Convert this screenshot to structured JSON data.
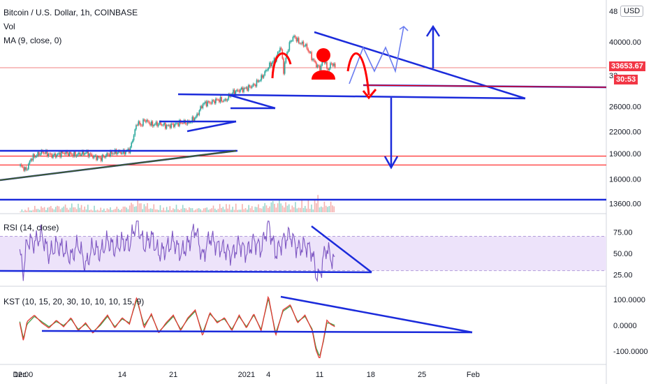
{
  "header": {
    "symbol_title": "Bitcoin / U.S. Dollar, 1h, COINBASE",
    "indicator_vol": "Vol",
    "indicator_ma": "MA (9, close, 0)",
    "currency_button": "USD",
    "currency_options_icon": "chevron-down-icon"
  },
  "price_tags": {
    "last_price": "33653.67",
    "countdown": "30:53",
    "color": "#f23645"
  },
  "colors": {
    "up": "#26a69a",
    "down": "#ef5350",
    "drawing_blue": "#1b2bdb",
    "drawing_red": "#ff0000",
    "rsi": "#7e57c2",
    "rsi_band": "#ede3fa",
    "kst": "#e53935",
    "kst_signal": "#43a047",
    "hline": "#f08080"
  },
  "chart_data": [
    {
      "type": "line",
      "name": "main-price",
      "title": "Bitcoin / U.S. Dollar, 1h, COINBASE",
      "y_scale": "log",
      "y_ticks": [
        "48000.00",
        "40000.00",
        "32000.00",
        "26000.00",
        "22000.00",
        "19000.00",
        "16000.00",
        "13600.00"
      ],
      "y_axis_top_partial": "48",
      "x_ticks": [
        "Dec",
        "12:00",
        "14",
        "21",
        "2021",
        "4",
        "11",
        "18",
        "25",
        "Feb"
      ],
      "x_tick_days": [
        0,
        0.5,
        14,
        21,
        31,
        34,
        41,
        48,
        55,
        62
      ],
      "x_start": "2020-11-26",
      "x_end": "2021-02-05",
      "ylim": [
        13200,
        50000
      ],
      "series": [
        {
          "x": [
            0,
            0.8,
            1.5,
            3,
            4.5,
            6,
            7.5,
            9,
            10,
            11,
            12,
            13.2,
            14,
            15,
            16,
            16.5,
            17,
            18,
            19,
            20,
            21,
            22,
            23,
            24,
            25,
            26,
            27,
            28,
            29,
            30,
            31,
            32,
            33,
            34,
            35,
            35.6,
            36,
            36.5,
            37,
            37.5,
            38,
            39,
            39.6,
            40,
            40.6,
            41,
            41.5,
            42,
            42.6,
            43.1
          ],
          "y": [
            17500,
            17000,
            18400,
            19200,
            18700,
            19100,
            18800,
            19100,
            18600,
            18400,
            18900,
            19200,
            19100,
            19500,
            23400,
            22900,
            23800,
            23000,
            23200,
            22800,
            23000,
            23400,
            23300,
            24200,
            26500,
            26700,
            27200,
            27000,
            28500,
            29000,
            29400,
            30000,
            31500,
            34000,
            36000,
            39000,
            33000,
            37500,
            40500,
            41500,
            40000,
            39000,
            37000,
            35500,
            34000,
            33500,
            36000,
            33000,
            34800,
            33653
          ]
        }
      ],
      "volume_peaks_x": [
        0.2,
        2,
        5,
        8,
        11,
        14,
        16,
        18,
        20,
        22,
        24,
        26,
        28,
        30,
        32,
        34,
        35,
        36,
        37,
        38,
        39,
        40,
        40.5,
        41,
        41.5,
        42,
        42.5,
        43
      ],
      "volume_peaks": [
        0.2,
        0.4,
        0.5,
        0.6,
        0.3,
        0.4,
        0.9,
        0.5,
        0.4,
        0.5,
        0.3,
        0.4,
        0.6,
        0.5,
        0.5,
        0.7,
        1.0,
        0.8,
        0.6,
        0.7,
        0.9,
        0.6,
        1.4,
        0.8,
        0.6,
        1.0,
        0.7,
        0.6
      ],
      "horizontal_levels": [
        33653.67,
        18400,
        17600,
        14100
      ]
    },
    {
      "type": "line",
      "name": "rsi",
      "title": "RSI (14, close)",
      "y_ticks": [
        "75.00",
        "50.00",
        "25.00"
      ],
      "ylim": [
        15,
        90
      ],
      "band": [
        30,
        70
      ],
      "series": [
        {
          "x": [
            0,
            0.5,
            1,
            2,
            3,
            4,
            5,
            6,
            7,
            8,
            9,
            10,
            11,
            12,
            13,
            14,
            15,
            16,
            17,
            18,
            19,
            20,
            21,
            22,
            23,
            24,
            25,
            26,
            27,
            28,
            29,
            30,
            31,
            32,
            33,
            34,
            35,
            36,
            37,
            38,
            39,
            40,
            40.5,
            41,
            41.5,
            42,
            42.5,
            43.1
          ],
          "y": [
            50,
            28,
            65,
            62,
            72,
            48,
            60,
            55,
            45,
            62,
            35,
            58,
            50,
            65,
            55,
            64,
            60,
            88,
            58,
            70,
            50,
            55,
            65,
            50,
            60,
            80,
            45,
            70,
            58,
            55,
            48,
            62,
            50,
            65,
            55,
            85,
            50,
            65,
            72,
            55,
            60,
            52,
            25,
            22,
            45,
            57,
            45,
            40
          ]
        }
      ]
    },
    {
      "type": "line",
      "name": "kst",
      "title": "KST (10, 15, 20, 30, 10, 10, 10, 15, 9)",
      "y_ticks": [
        "100.0000",
        "0.0000",
        "-100.0000"
      ],
      "ylim": [
        -140,
        130
      ],
      "series": [
        {
          "x": [
            0,
            0.5,
            1,
            2,
            3,
            4,
            5,
            6,
            7,
            8,
            9,
            10,
            11,
            12,
            13,
            14,
            15,
            16,
            17,
            18,
            19,
            20,
            21,
            22,
            23,
            24,
            25,
            26,
            27,
            28,
            29,
            30,
            31,
            32,
            33,
            34,
            35,
            36,
            37,
            38,
            39,
            40,
            40.5,
            41,
            41.5,
            42,
            42.5,
            43.1
          ],
          "y": [
            10,
            -60,
            15,
            40,
            10,
            -10,
            20,
            -5,
            30,
            -20,
            10,
            -30,
            5,
            40,
            -10,
            30,
            5,
            110,
            -10,
            45,
            -30,
            10,
            40,
            -20,
            30,
            60,
            -40,
            50,
            10,
            30,
            -20,
            40,
            -10,
            45,
            -20,
            115,
            -40,
            60,
            80,
            10,
            40,
            -20,
            -95,
            -130,
            -60,
            20,
            5,
            -5
          ]
        },
        {
          "x": [
            0,
            0.5,
            1,
            2,
            3,
            4,
            5,
            6,
            7,
            8,
            9,
            10,
            11,
            12,
            13,
            14,
            15,
            16,
            17,
            18,
            19,
            20,
            21,
            22,
            23,
            24,
            25,
            26,
            27,
            28,
            29,
            30,
            31,
            32,
            33,
            34,
            35,
            36,
            37,
            38,
            39,
            40,
            40.5,
            41,
            41.5,
            42,
            42.5,
            43.1
          ],
          "y": [
            15,
            -50,
            5,
            35,
            15,
            -5,
            15,
            0,
            25,
            -15,
            5,
            -25,
            0,
            35,
            -5,
            25,
            10,
            100,
            0,
            40,
            -25,
            5,
            35,
            -15,
            25,
            55,
            -30,
            45,
            15,
            25,
            -15,
            35,
            -5,
            40,
            -15,
            105,
            -30,
            55,
            75,
            15,
            35,
            -15,
            -85,
            -120,
            -65,
            10,
            8,
            0
          ]
        }
      ]
    }
  ]
}
